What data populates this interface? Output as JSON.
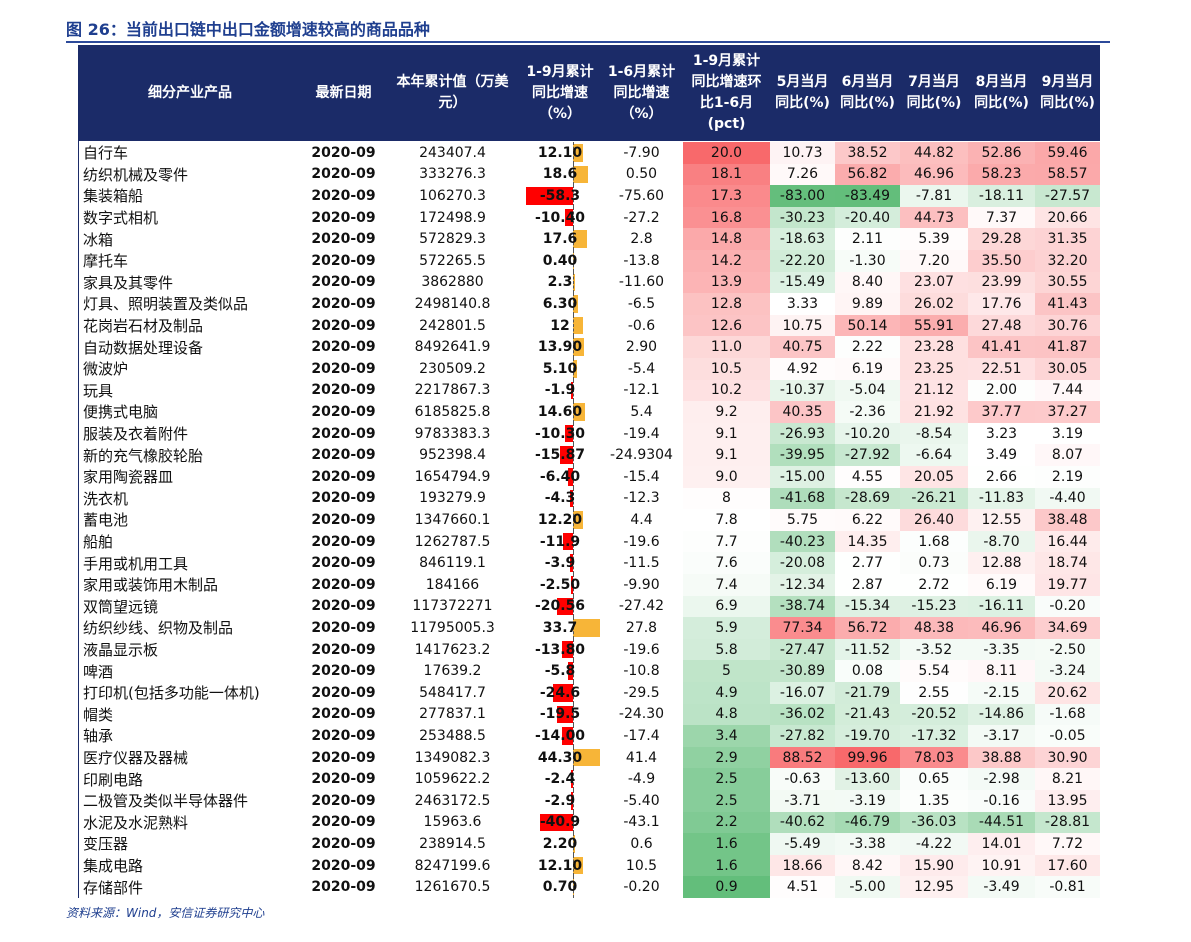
{
  "header": {
    "title": "图 26：当前出口链中出口金额增速较高的商品品种"
  },
  "table": {
    "columns": [
      "细分产业产品",
      "最新日期",
      "本年累计值（万美元）",
      "1-9月累计同比增速（%）",
      "1-6月累计同比增速（%）",
      "1-9月累计同比增速环比1-6月(pct)",
      "5月当月同比(%)",
      "6月当月同比(%)",
      "7月当月同比(%)",
      "8月当月同比(%)",
      "9月当月同比(%)"
    ],
    "rows": [
      [
        "自行车",
        "2020-09",
        "243407.4",
        "12.10",
        "-7.90",
        "20.0",
        "10.73",
        "38.52",
        "44.82",
        "52.86",
        "59.46"
      ],
      [
        "纺织机械及零件",
        "2020-09",
        "333276.3",
        "18.6",
        "0.50",
        "18.1",
        "7.26",
        "56.82",
        "46.96",
        "58.23",
        "58.57"
      ],
      [
        "集装箱船",
        "2020-09",
        "106270.3",
        "-58.3",
        "-75.60",
        "17.3",
        "-83.00",
        "-83.49",
        "-7.81",
        "-18.11",
        "-27.57"
      ],
      [
        "数字式相机",
        "2020-09",
        "172498.9",
        "-10.40",
        "-27.2",
        "16.8",
        "-30.23",
        "-20.40",
        "44.73",
        "7.37",
        "20.66"
      ],
      [
        "冰箱",
        "2020-09",
        "572829.3",
        "17.6",
        "2.8",
        "14.8",
        "-18.63",
        "2.11",
        "5.39",
        "29.28",
        "31.35"
      ],
      [
        "摩托车",
        "2020-09",
        "572265.5",
        "0.40",
        "-13.8",
        "14.2",
        "-22.20",
        "-1.30",
        "7.20",
        "35.50",
        "32.20"
      ],
      [
        "家具及其零件",
        "2020-09",
        "3862880",
        "2.3",
        "-11.60",
        "13.9",
        "-15.49",
        "8.40",
        "23.07",
        "23.99",
        "30.55"
      ],
      [
        "灯具、照明装置及类似品",
        "2020-09",
        "2498140.8",
        "6.30",
        "-6.5",
        "12.8",
        "3.33",
        "9.89",
        "26.02",
        "17.76",
        "41.43"
      ],
      [
        "花岗岩石材及制品",
        "2020-09",
        "242801.5",
        "12",
        "-0.6",
        "12.6",
        "10.75",
        "50.14",
        "55.91",
        "27.48",
        "30.76"
      ],
      [
        "自动数据处理设备",
        "2020-09",
        "8492641.9",
        "13.90",
        "2.90",
        "11.0",
        "40.75",
        "2.22",
        "23.28",
        "41.41",
        "41.87"
      ],
      [
        "微波炉",
        "2020-09",
        "230509.2",
        "5.10",
        "-5.4",
        "10.5",
        "4.92",
        "6.19",
        "23.25",
        "22.51",
        "30.05"
      ],
      [
        "玩具",
        "2020-09",
        "2217867.3",
        "-1.9",
        "-12.1",
        "10.2",
        "-10.37",
        "-5.04",
        "21.12",
        "2.00",
        "7.44"
      ],
      [
        "便携式电脑",
        "2020-09",
        "6185825.8",
        "14.60",
        "5.4",
        "9.2",
        "40.35",
        "-2.36",
        "21.92",
        "37.77",
        "37.27"
      ],
      [
        "服装及衣着附件",
        "2020-09",
        "9783383.3",
        "-10.30",
        "-19.4",
        "9.1",
        "-26.93",
        "-10.20",
        "-8.54",
        "3.23",
        "3.19"
      ],
      [
        "新的充气橡胶轮胎",
        "2020-09",
        "952398.4",
        "-15.87",
        "-24.9304",
        "9.1",
        "-39.95",
        "-27.92",
        "-6.64",
        "3.49",
        "8.07"
      ],
      [
        "家用陶瓷器皿",
        "2020-09",
        "1654794.9",
        "-6.40",
        "-15.4",
        "9.0",
        "-15.00",
        "4.55",
        "20.05",
        "2.66",
        "2.19"
      ],
      [
        "洗衣机",
        "2020-09",
        "193279.9",
        "-4.3",
        "-12.3",
        "8",
        "-41.68",
        "-28.69",
        "-26.21",
        "-11.83",
        "-4.40"
      ],
      [
        "蓄电池",
        "2020-09",
        "1347660.1",
        "12.20",
        "4.4",
        "7.8",
        "5.75",
        "6.22",
        "26.40",
        "12.55",
        "38.48"
      ],
      [
        "船舶",
        "2020-09",
        "1262787.5",
        "-11.9",
        "-19.6",
        "7.7",
        "-40.23",
        "14.35",
        "1.68",
        "-8.70",
        "16.44"
      ],
      [
        "手用或机用工具",
        "2020-09",
        "846119.1",
        "-3.9",
        "-11.5",
        "7.6",
        "-20.08",
        "2.77",
        "0.73",
        "12.88",
        "18.74"
      ],
      [
        "家用或装饰用木制品",
        "2020-09",
        "184166",
        "-2.50",
        "-9.90",
        "7.4",
        "-12.34",
        "2.87",
        "2.72",
        "6.19",
        "19.77"
      ],
      [
        "双筒望远镜",
        "2020-09",
        "117372271",
        "-20.56",
        "-27.42",
        "6.9",
        "-38.74",
        "-15.34",
        "-15.23",
        "-16.11",
        "-0.20"
      ],
      [
        "纺织纱线、织物及制品",
        "2020-09",
        "11795005.3",
        "33.7",
        "27.8",
        "5.9",
        "77.34",
        "56.72",
        "48.38",
        "46.96",
        "34.69"
      ],
      [
        "液晶显示板",
        "2020-09",
        "1417623.2",
        "-13.80",
        "-19.6",
        "5.8",
        "-27.47",
        "-11.52",
        "-3.52",
        "-3.35",
        "-2.50"
      ],
      [
        "啤酒",
        "2020-09",
        "17639.2",
        "-5.8",
        "-10.8",
        "5",
        "-30.89",
        "0.08",
        "5.54",
        "8.11",
        "-3.24"
      ],
      [
        "打印机(包括多功能一体机)",
        "2020-09",
        "548417.7",
        "-24.6",
        "-29.5",
        "4.9",
        "-16.07",
        "-21.79",
        "2.55",
        "-2.15",
        "20.62"
      ],
      [
        "帽类",
        "2020-09",
        "277837.1",
        "-19.5",
        "-24.30",
        "4.8",
        "-36.02",
        "-21.43",
        "-20.52",
        "-14.86",
        "-1.68"
      ],
      [
        "轴承",
        "2020-09",
        "253488.5",
        "-14.00",
        "-17.4",
        "3.4",
        "-27.82",
        "-19.70",
        "-17.32",
        "-3.17",
        "-0.05"
      ],
      [
        "医疗仪器及器械",
        "2020-09",
        "1349082.3",
        "44.30",
        "41.4",
        "2.9",
        "88.52",
        "99.96",
        "78.03",
        "38.88",
        "30.90"
      ],
      [
        "印刷电路",
        "2020-09",
        "1059622.2",
        "-2.4",
        "-4.9",
        "2.5",
        "-0.63",
        "-13.60",
        "0.65",
        "-2.98",
        "8.21"
      ],
      [
        "二极管及类似半导体器件",
        "2020-09",
        "2463172.5",
        "-2.9",
        "-5.40",
        "2.5",
        "-3.71",
        "-3.19",
        "1.35",
        "-0.16",
        "13.95"
      ],
      [
        "水泥及水泥熟料",
        "2020-09",
        "15963.6",
        "-40.9",
        "-43.1",
        "2.2",
        "-40.62",
        "-46.79",
        "-36.03",
        "-44.51",
        "-28.81"
      ],
      [
        "变压器",
        "2020-09",
        "238914.5",
        "2.20",
        "0.6",
        "1.6",
        "-5.49",
        "-3.38",
        "-4.22",
        "14.01",
        "7.72"
      ],
      [
        "集成电路",
        "2020-09",
        "8247199.6",
        "12.10",
        "10.5",
        "1.6",
        "18.66",
        "8.42",
        "15.90",
        "10.91",
        "17.60"
      ],
      [
        "存储部件",
        "2020-09",
        "1261670.5",
        "0.70",
        "-0.20",
        "0.9",
        "4.51",
        "-5.00",
        "12.95",
        "-3.49",
        "-0.81"
      ]
    ]
  },
  "footer": {
    "source": "资料来源：Wind，安信证券研究中心"
  }
}
